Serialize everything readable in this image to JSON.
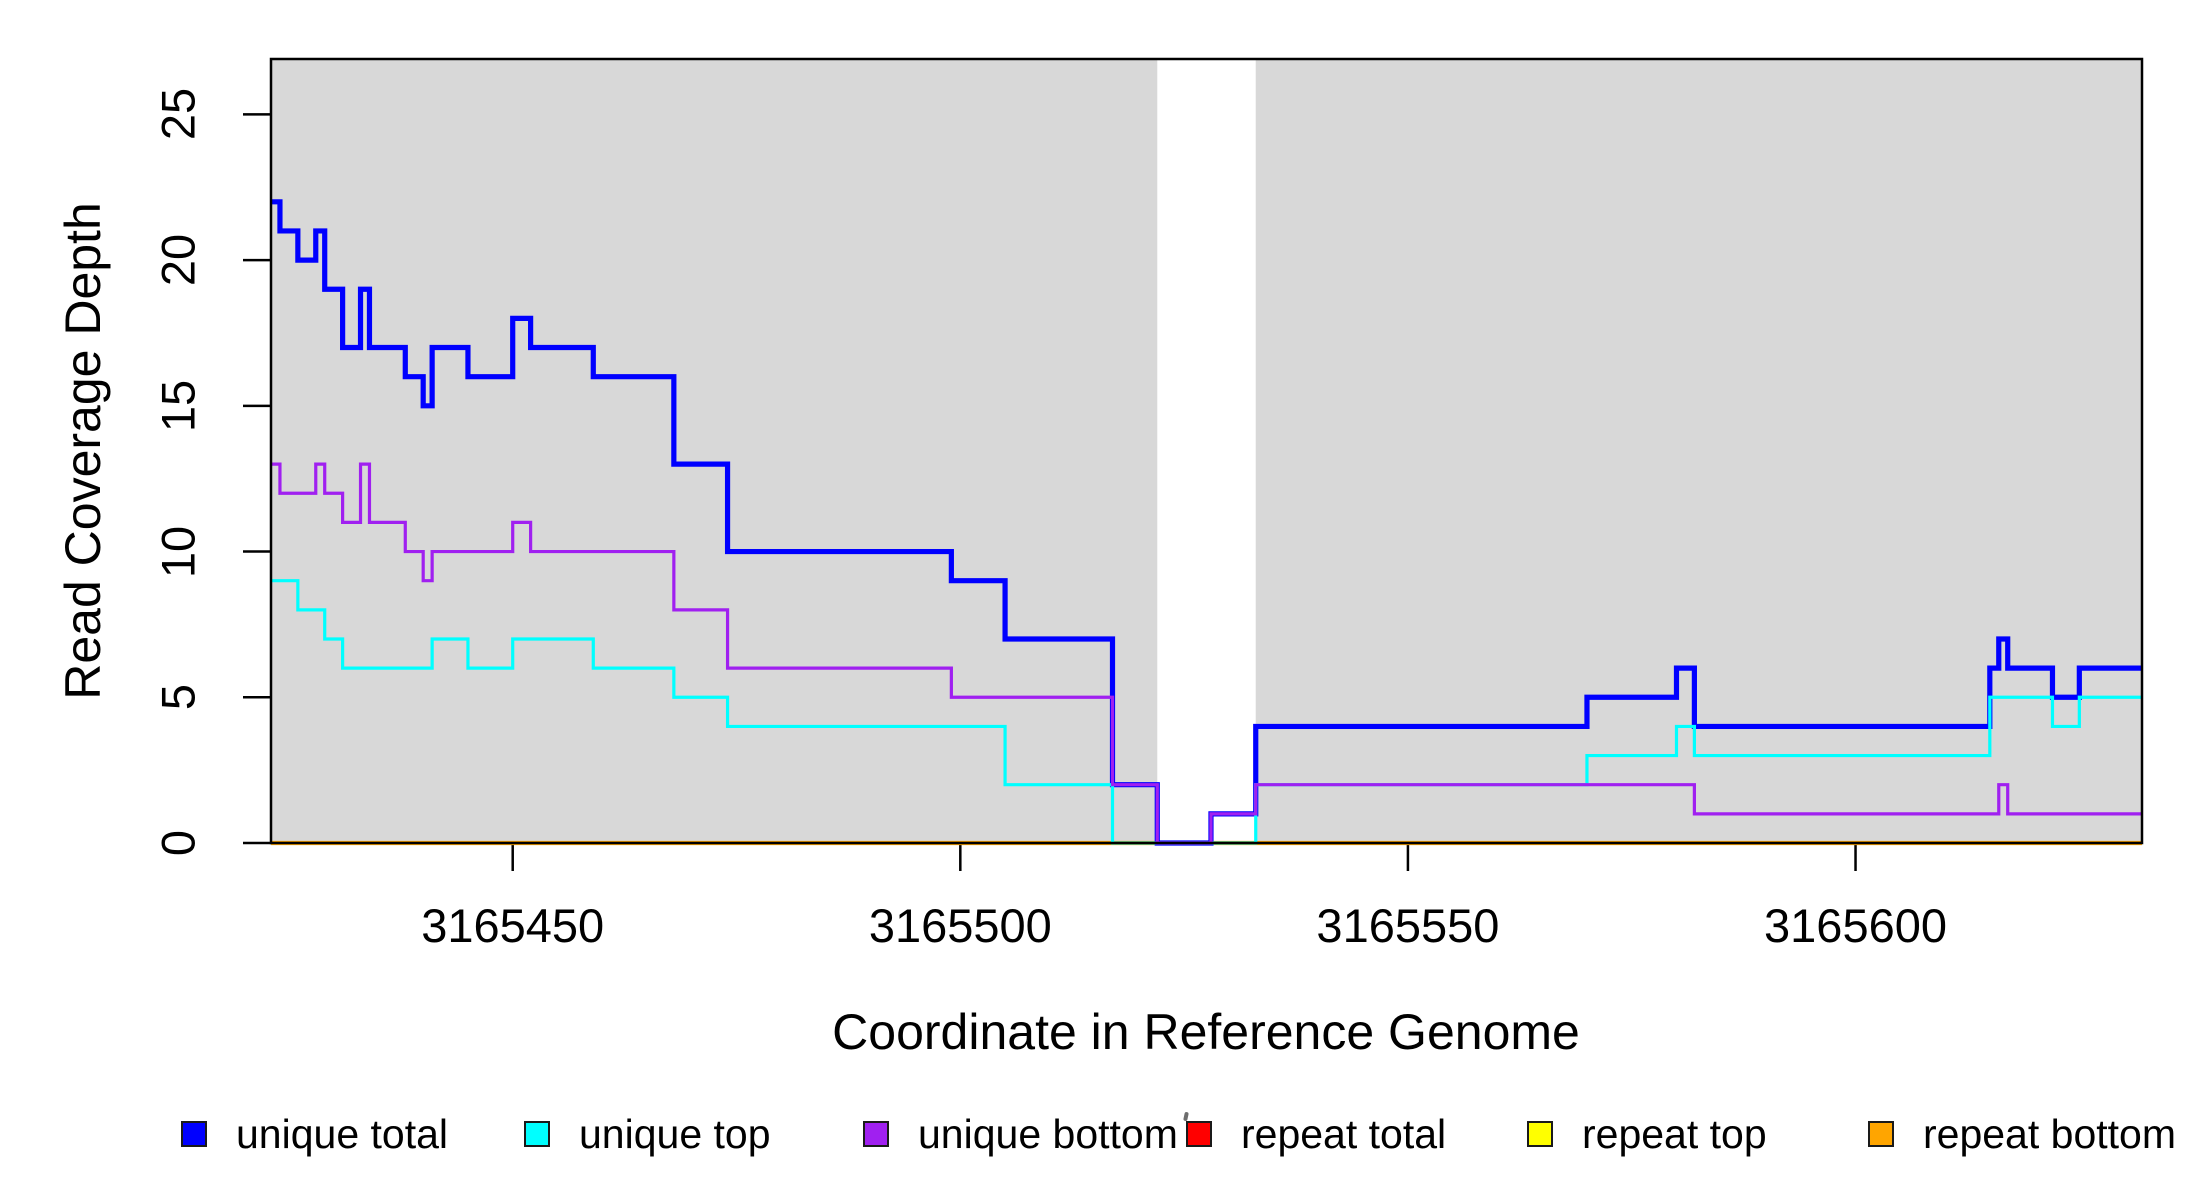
{
  "axes": {
    "x_label": "Coordinate in Reference Genome",
    "y_label": "Read Coverage Depth",
    "x_tick_labels": [
      "3165450",
      "3165500",
      "3165550",
      "3165600"
    ],
    "x_tick_values": [
      3165450,
      3165500,
      3165550,
      3165600
    ],
    "y_tick_labels": [
      "0",
      "5",
      "10",
      "15",
      "20",
      "25"
    ],
    "y_tick_values": [
      0,
      5,
      10,
      15,
      20,
      25
    ],
    "xlim": [
      3165423,
      3165632
    ],
    "ylim": [
      0,
      26.9
    ],
    "grid": "off"
  },
  "colors": {
    "plot_background": "#d8d8d8",
    "gap_band": "#ffffff",
    "box_border": "#000000",
    "page_background": "#ffffff"
  },
  "chart_data": {
    "type": "line",
    "subtype": "step-coverage",
    "x_end": 3165632,
    "gap_band": {
      "x0": 3165522,
      "x1": 3165533
    },
    "series": [
      {
        "name": "repeat total",
        "color": "#ff0000",
        "width": 3,
        "steps": [
          [
            3165423,
            0
          ]
        ]
      },
      {
        "name": "repeat top",
        "color": "#ffff00",
        "width": 3,
        "steps": [
          [
            3165423,
            0
          ]
        ]
      },
      {
        "name": "repeat bottom",
        "color": "#ffa500",
        "width": 4.2,
        "steps": [
          [
            3165423,
            0
          ]
        ]
      },
      {
        "name": "unique total",
        "color": "#0000ff",
        "width": 5.2,
        "steps": [
          [
            3165423,
            22
          ],
          [
            3165424,
            21
          ],
          [
            3165426,
            20
          ],
          [
            3165428,
            21
          ],
          [
            3165429,
            19
          ],
          [
            3165431,
            17
          ],
          [
            3165433,
            19
          ],
          [
            3165434,
            17
          ],
          [
            3165438,
            16
          ],
          [
            3165440,
            15
          ],
          [
            3165441,
            17
          ],
          [
            3165445,
            16
          ],
          [
            3165450,
            18
          ],
          [
            3165452,
            17
          ],
          [
            3165459,
            16
          ],
          [
            3165468,
            13
          ],
          [
            3165474,
            10
          ],
          [
            3165499,
            9
          ],
          [
            3165505,
            7
          ],
          [
            3165517,
            2
          ],
          [
            3165522,
            0
          ],
          [
            3165528,
            1
          ],
          [
            3165533,
            4
          ],
          [
            3165570,
            5
          ],
          [
            3165580,
            6
          ],
          [
            3165582,
            4
          ],
          [
            3165615,
            6
          ],
          [
            3165616,
            7
          ],
          [
            3165617,
            6
          ],
          [
            3165622,
            5
          ],
          [
            3165625,
            6
          ]
        ]
      },
      {
        "name": "unique top",
        "color": "#00ffff",
        "width": 3.2,
        "steps": [
          [
            3165423,
            9
          ],
          [
            3165426,
            8
          ],
          [
            3165429,
            7
          ],
          [
            3165431,
            6
          ],
          [
            3165441,
            7
          ],
          [
            3165445,
            6
          ],
          [
            3165450,
            7
          ],
          [
            3165459,
            6
          ],
          [
            3165468,
            5
          ],
          [
            3165474,
            4
          ],
          [
            3165505,
            2
          ],
          [
            3165517,
            0
          ],
          [
            3165533,
            2
          ],
          [
            3165570,
            3
          ],
          [
            3165580,
            4
          ],
          [
            3165582,
            3
          ],
          [
            3165615,
            5
          ],
          [
            3165622,
            4
          ],
          [
            3165625,
            5
          ]
        ]
      },
      {
        "name": "unique bottom",
        "color": "#a020f0",
        "width": 3.2,
        "steps": [
          [
            3165423,
            13
          ],
          [
            3165424,
            12
          ],
          [
            3165428,
            13
          ],
          [
            3165429,
            12
          ],
          [
            3165431,
            11
          ],
          [
            3165433,
            13
          ],
          [
            3165434,
            11
          ],
          [
            3165438,
            10
          ],
          [
            3165440,
            9
          ],
          [
            3165441,
            10
          ],
          [
            3165450,
            11
          ],
          [
            3165452,
            10
          ],
          [
            3165468,
            8
          ],
          [
            3165474,
            6
          ],
          [
            3165499,
            5
          ],
          [
            3165517,
            2
          ],
          [
            3165522,
            0
          ],
          [
            3165528,
            1
          ],
          [
            3165533,
            2
          ],
          [
            3165582,
            1
          ],
          [
            3165616,
            2
          ],
          [
            3165617,
            1
          ]
        ]
      }
    ]
  },
  "legend": {
    "items": [
      {
        "label": "unique total",
        "color": "#0000ff"
      },
      {
        "label": "unique top",
        "color": "#00ffff"
      },
      {
        "label": "unique bottom",
        "color": "#a020f0"
      },
      {
        "label": "repeat total",
        "color": "#ff0000"
      },
      {
        "label": "repeat top",
        "color": "#ffff00"
      },
      {
        "label": "repeat bottom",
        "color": "#ffa500"
      }
    ]
  }
}
